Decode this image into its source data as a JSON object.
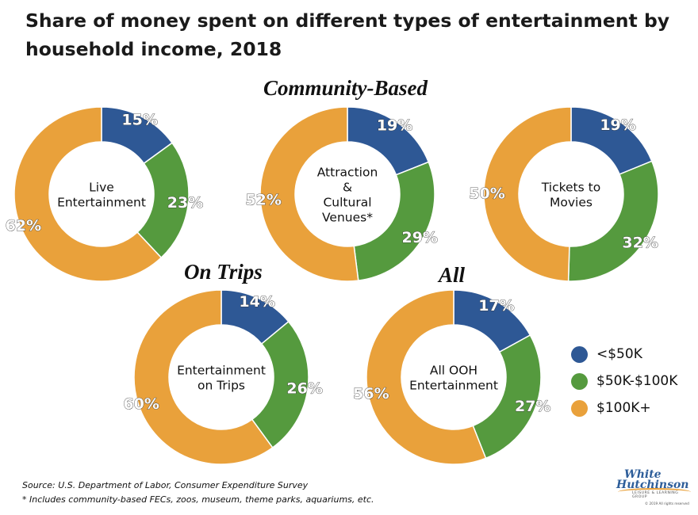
{
  "title": "Share of money spent on different types of entertainment by household income, 2018",
  "sections": {
    "community": "Community-Based",
    "trips": "On Trips",
    "all": "All"
  },
  "colors": {
    "<$50K": "#2e5895",
    "$50K-$100K": "#559a3e",
    "$100K+": "#e9a13b"
  },
  "legend": [
    {
      "label": "<$50K",
      "color": "#2e5895"
    },
    {
      "label": "$50K-$100K",
      "color": "#559a3e"
    },
    {
      "label": "$100K+",
      "color": "#e9a13b"
    }
  ],
  "chart_data": [
    {
      "type": "pie",
      "center_label": [
        "Live",
        "Entertainment"
      ],
      "categories": [
        "<$50K",
        "$50K-$100K",
        "$100K+"
      ],
      "values": [
        15,
        23,
        62
      ],
      "labels": [
        "15%",
        "23%",
        "62%"
      ]
    },
    {
      "type": "pie",
      "center_label": [
        "Attraction",
        "&",
        "Cultural",
        "Venues*"
      ],
      "categories": [
        "<$50K",
        "$50K-$100K",
        "$100K+"
      ],
      "values": [
        19,
        29,
        52
      ],
      "labels": [
        "19%",
        "29%",
        "52%"
      ]
    },
    {
      "type": "pie",
      "center_label": [
        "Tickets to",
        "Movies"
      ],
      "categories": [
        "<$50K",
        "$50K-$100K",
        "$100K+"
      ],
      "values": [
        19,
        32,
        50
      ],
      "labels": [
        "19%",
        "32%",
        "50%"
      ]
    },
    {
      "type": "pie",
      "center_label": [
        "Entertainment",
        "on Trips"
      ],
      "categories": [
        "<$50K",
        "$50K-$100K",
        "$100K+"
      ],
      "values": [
        14,
        26,
        60
      ],
      "labels": [
        "14%",
        "26%",
        "60%"
      ]
    },
    {
      "type": "pie",
      "center_label": [
        "All OOH",
        "Entertainment"
      ],
      "categories": [
        "<$50K",
        "$50K-$100K",
        "$100K+"
      ],
      "values": [
        17,
        27,
        56
      ],
      "labels": [
        "17%",
        "27%",
        "56%"
      ]
    }
  ],
  "footer": {
    "source": "Source: U.S. Department of Labor, Consumer Expenditure Survey",
    "note": "* Includes community-based FECs, zoos, museum, theme parks, aquariums, etc."
  },
  "logo": {
    "line1": "White",
    "line2": "Hutchinson",
    "tagline": "LEISURE & LEARNING GROUP",
    "copyright": "© 2019 All rights reserved"
  }
}
